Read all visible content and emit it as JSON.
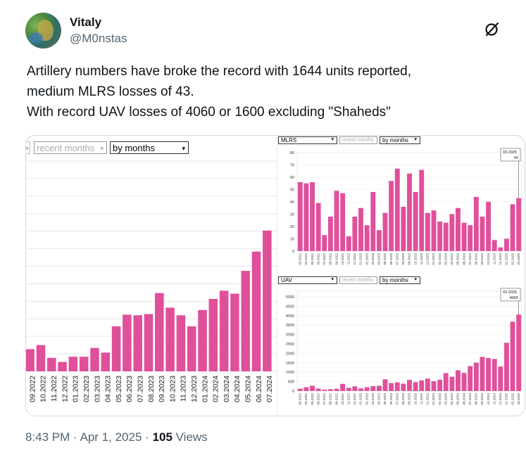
{
  "author": {
    "name": "Vitaly",
    "handle": "@M0nstas"
  },
  "tweet": {
    "lines": [
      "Artillery numbers have broke the record with 1644 units reported,",
      "medium MLRS losses of 43.",
      "With record UAV losses of 4060 or 1600 excluding \"Shaheds\""
    ]
  },
  "footer": {
    "time": "8:43 PM",
    "date": "Apr 1, 2025",
    "views_count": "105",
    "views_label": "Views"
  },
  "colors": {
    "bar": "#e0509a",
    "text": "#0f1419",
    "muted": "#536471"
  },
  "icons": [
    "grok-icon"
  ],
  "charts": {
    "main": {
      "controls": {
        "range": "recent months",
        "period": "by months"
      }
    },
    "mlrs": {
      "controls": {
        "category": "MLRS",
        "range": "recent months",
        "period": "by months"
      },
      "tooltip": {
        "date": "03.2025",
        "value": "43"
      }
    },
    "uav": {
      "controls": {
        "category": "UAV",
        "range": "recent months",
        "period": "by months"
      },
      "tooltip": {
        "date": "03.2025",
        "value": "4060"
      }
    }
  },
  "chart_data": [
    {
      "type": "bar",
      "title": "Artillery",
      "categories": [
        "09.2022",
        "10.2022",
        "11.2022",
        "12.2022",
        "01.2023",
        "02.2023",
        "03.2023",
        "04.2023",
        "05.2023",
        "06.2023",
        "07.2023",
        "08.2023",
        "09.2023",
        "10.2023",
        "11.2023",
        "12.2023",
        "01.2024",
        "02.2024",
        "03.2024",
        "04.2024",
        "05.2024",
        "06.2024",
        "07.2024"
      ],
      "values": [
        380,
        450,
        230,
        160,
        250,
        250,
        400,
        320,
        770,
        970,
        960,
        980,
        1340,
        1090,
        960,
        770,
        1050,
        1240,
        1380,
        1330,
        1720,
        2050,
        2410
      ],
      "ylim": [
        0,
        3600
      ]
    },
    {
      "type": "bar",
      "title": "MLRS",
      "categories": [
        "03.2022",
        "04.2022",
        "05.2022",
        "06.2022",
        "07.2022",
        "08.2022",
        "09.2022",
        "10.2022",
        "11.2022",
        "12.2022",
        "01.2023",
        "02.2023",
        "03.2023",
        "04.2023",
        "05.2023",
        "06.2023",
        "07.2023",
        "08.2023",
        "09.2023",
        "10.2023",
        "11.2023",
        "12.2023",
        "01.2024",
        "02.2024",
        "03.2024",
        "04.2024",
        "05.2024",
        "06.2024",
        "07.2024",
        "08.2024",
        "09.2024",
        "10.2024",
        "11.2024",
        "12.2024",
        "01.2025",
        "02.2025",
        "03.2025"
      ],
      "values": [
        56,
        55,
        56,
        39,
        13,
        28,
        49,
        47,
        12,
        28,
        35,
        21,
        48,
        17,
        31,
        57,
        67,
        36,
        63,
        48,
        66,
        31,
        33,
        24,
        23,
        30,
        35,
        23,
        21,
        44,
        28,
        40,
        9,
        3,
        10,
        38,
        43
      ],
      "yticks": [
        0,
        10,
        20,
        30,
        40,
        50,
        60,
        70,
        80
      ],
      "ylim": [
        0,
        80
      ]
    },
    {
      "type": "bar",
      "title": "UAV",
      "categories": [
        "03.2022",
        "04.2022",
        "05.2022",
        "06.2022",
        "07.2022",
        "08.2022",
        "09.2022",
        "10.2022",
        "11.2022",
        "12.2022",
        "01.2023",
        "02.2023",
        "03.2023",
        "04.2023",
        "05.2023",
        "06.2023",
        "07.2023",
        "08.2023",
        "09.2023",
        "10.2023",
        "11.2023",
        "12.2023",
        "01.2024",
        "02.2024",
        "03.2024",
        "04.2024",
        "05.2024",
        "06.2024",
        "07.2024",
        "08.2024",
        "09.2024",
        "10.2024",
        "11.2024",
        "12.2024",
        "01.2025",
        "02.2025",
        "03.2025"
      ],
      "values": [
        120,
        200,
        280,
        130,
        70,
        100,
        120,
        380,
        170,
        250,
        140,
        200,
        260,
        280,
        620,
        420,
        460,
        390,
        590,
        470,
        560,
        660,
        520,
        600,
        950,
        760,
        1100,
        960,
        1320,
        1510,
        1810,
        1750,
        1700,
        1300,
        2560,
        3680,
        4060
      ],
      "yticks": [
        0,
        500,
        1000,
        1500,
        2000,
        2500,
        3000,
        3500,
        4000,
        4500,
        5000
      ],
      "ylim": [
        0,
        5300
      ]
    }
  ]
}
